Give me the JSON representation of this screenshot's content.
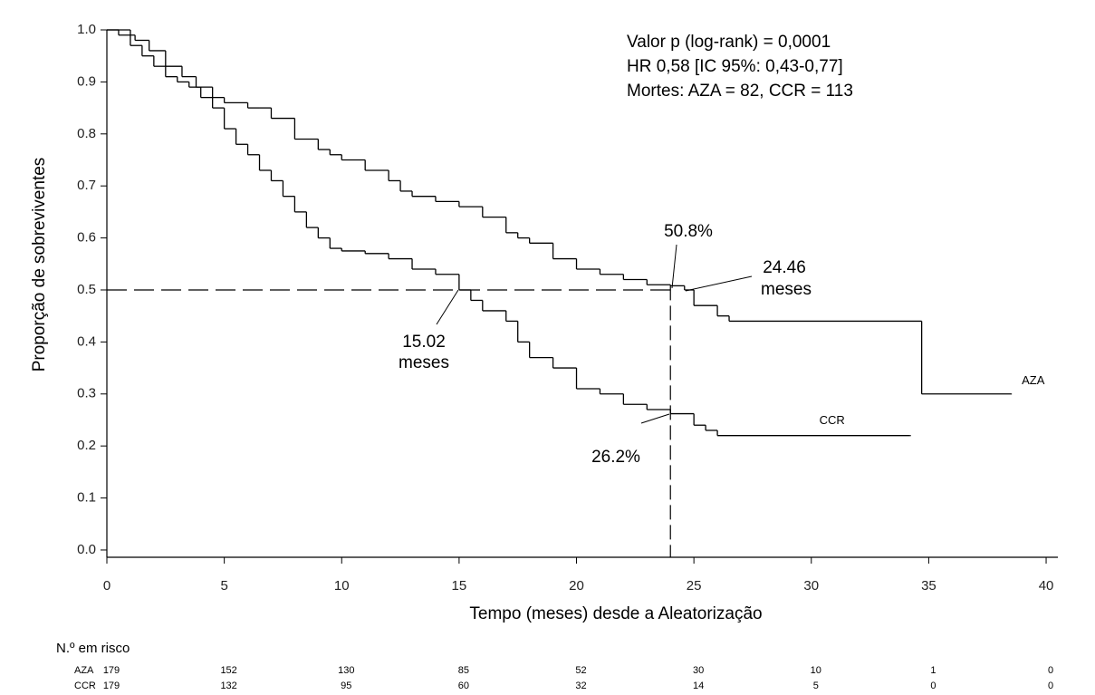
{
  "chart_data": {
    "type": "step",
    "stats": [
      "Valor p (log-rank) = 0,0001",
      "HR 0,58 [IC 95%: 0,43-0,77]",
      "Mortes: AZA = 82, CCR = 113"
    ],
    "xlabel": "Tempo (meses) desde a Aleatorização",
    "ylabel": "Proporção de sobreviventes",
    "xlim": [
      0,
      40.5
    ],
    "ylim": [
      -0.014,
      1.0
    ],
    "xticks": [
      0,
      5,
      10,
      15,
      20,
      25,
      30,
      35,
      40
    ],
    "yticks": [
      {
        "value": 0,
        "label": "0.0"
      },
      0.1,
      0.2,
      0.3,
      0.4,
      0.5,
      0.6,
      0.7,
      0.8,
      0.9,
      {
        "value": 1,
        "label": "1.0"
      }
    ],
    "series": [
      {
        "name": "AZA",
        "color": "#000000",
        "x": [
          0,
          0.5,
          1.2,
          1.8,
          2.5,
          3.2,
          3.8,
          4.5,
          5,
          6,
          6.5,
          7,
          8,
          9,
          9.5,
          10,
          11,
          12,
          12.5,
          13,
          14,
          15,
          16,
          17,
          17.5,
          18,
          19,
          20,
          21,
          22,
          23,
          24,
          24.6,
          25,
          26,
          26.5,
          34.7,
          38.5
        ],
        "values": [
          1.0,
          0.99,
          0.98,
          0.96,
          0.93,
          0.91,
          0.89,
          0.87,
          0.86,
          0.85,
          0.85,
          0.83,
          0.79,
          0.77,
          0.76,
          0.75,
          0.73,
          0.71,
          0.69,
          0.68,
          0.67,
          0.66,
          0.64,
          0.61,
          0.6,
          0.59,
          0.56,
          0.54,
          0.53,
          0.52,
          0.51,
          0.508,
          0.5,
          0.47,
          0.45,
          0.44,
          0.3,
          0.3
        ]
      },
      {
        "name": "CCR",
        "color": "#000000",
        "x": [
          0,
          1,
          1.5,
          2,
          2.5,
          3,
          3.5,
          4,
          4.5,
          5,
          5.5,
          6,
          6.5,
          7,
          7.5,
          8,
          8.5,
          9,
          9.5,
          10,
          11,
          12,
          13,
          14,
          15,
          15.5,
          16,
          17,
          17.5,
          18,
          19,
          20,
          21,
          22,
          23,
          24,
          25,
          25.5,
          26,
          34.2
        ],
        "values": [
          1.0,
          0.97,
          0.95,
          0.93,
          0.91,
          0.9,
          0.89,
          0.87,
          0.85,
          0.81,
          0.78,
          0.76,
          0.73,
          0.71,
          0.68,
          0.65,
          0.62,
          0.6,
          0.58,
          0.575,
          0.57,
          0.56,
          0.54,
          0.53,
          0.5,
          0.48,
          0.46,
          0.44,
          0.4,
          0.37,
          0.35,
          0.31,
          0.3,
          0.28,
          0.27,
          0.262,
          0.24,
          0.23,
          0.22,
          0.22
        ]
      }
    ],
    "reference_lines": [
      {
        "axis": "y",
        "value": 0.5
      },
      {
        "axis": "x",
        "value": 24
      }
    ],
    "annotations": [
      "50.8%",
      "24.46",
      "meses",
      "15.02",
      "meses",
      "26.2%"
    ],
    "risk_table": {
      "title": "N.º em risco",
      "rows": [
        {
          "name": "AZA",
          "values": [
            179,
            152,
            130,
            85,
            52,
            30,
            10,
            1,
            0
          ]
        },
        {
          "name": "CCR",
          "values": [
            179,
            132,
            95,
            60,
            32,
            14,
            5,
            0,
            0
          ]
        }
      ]
    }
  }
}
